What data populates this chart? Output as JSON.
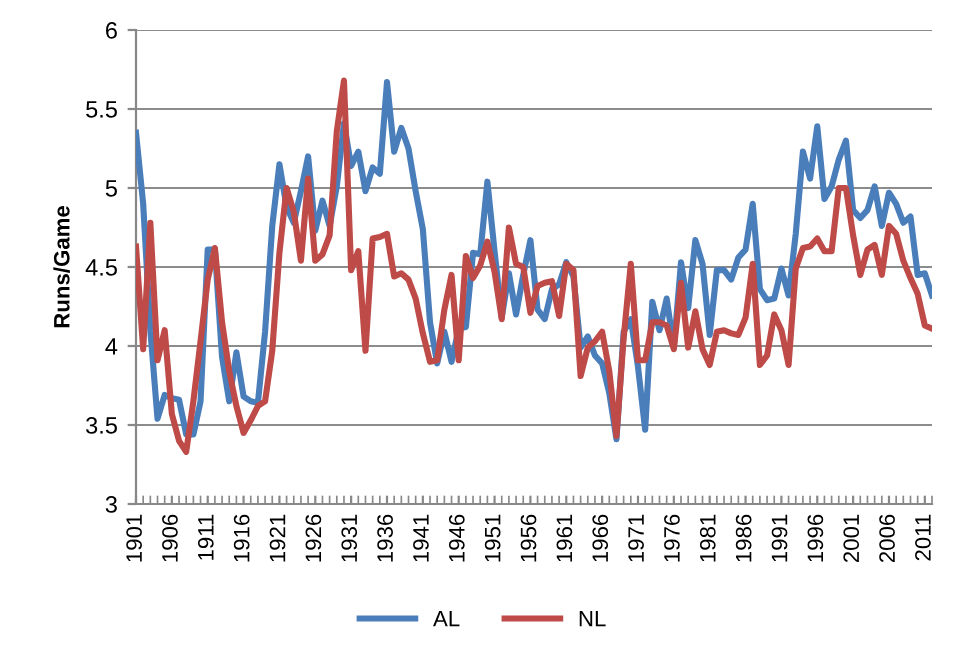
{
  "chart_data": {
    "type": "line",
    "ylabel": "Runs/Game",
    "x": [
      1901,
      1902,
      1903,
      1904,
      1905,
      1906,
      1907,
      1908,
      1909,
      1910,
      1911,
      1912,
      1913,
      1914,
      1915,
      1916,
      1917,
      1918,
      1919,
      1920,
      1921,
      1922,
      1923,
      1924,
      1925,
      1926,
      1927,
      1928,
      1929,
      1930,
      1931,
      1932,
      1933,
      1934,
      1935,
      1936,
      1937,
      1938,
      1939,
      1940,
      1941,
      1942,
      1943,
      1944,
      1945,
      1946,
      1947,
      1948,
      1949,
      1950,
      1951,
      1952,
      1953,
      1954,
      1955,
      1956,
      1957,
      1958,
      1959,
      1960,
      1961,
      1962,
      1963,
      1964,
      1965,
      1966,
      1967,
      1968,
      1969,
      1970,
      1971,
      1972,
      1973,
      1974,
      1975,
      1976,
      1977,
      1978,
      1979,
      1980,
      1981,
      1982,
      1983,
      1984,
      1985,
      1986,
      1987,
      1988,
      1989,
      1990,
      1991,
      1992,
      1993,
      1994,
      1995,
      1996,
      1997,
      1998,
      1999,
      2000,
      2001,
      2002,
      2003,
      2004,
      2005,
      2006,
      2007,
      2008,
      2009,
      2010,
      2011,
      2012
    ],
    "series": [
      {
        "name": "AL",
        "color": "#4a7ebb",
        "values": [
          5.35,
          4.9,
          4.1,
          3.54,
          3.69,
          3.67,
          3.66,
          3.44,
          3.44,
          3.65,
          4.61,
          4.61,
          3.93,
          3.65,
          3.96,
          3.68,
          3.65,
          3.64,
          4.09,
          4.76,
          5.15,
          4.88,
          4.78,
          4.98,
          5.2,
          4.73,
          4.92,
          4.76,
          5.01,
          5.41,
          5.14,
          5.23,
          4.98,
          5.13,
          5.09,
          5.67,
          5.23,
          5.38,
          5.25,
          4.98,
          4.74,
          4.15,
          3.89,
          4.09,
          3.9,
          4.11,
          4.12,
          4.59,
          4.58,
          5.04,
          4.6,
          4.18,
          4.46,
          4.2,
          4.45,
          4.67,
          4.23,
          4.17,
          4.36,
          4.39,
          4.53,
          4.44,
          3.99,
          4.06,
          3.94,
          3.89,
          3.7,
          3.41,
          4.09,
          4.17,
          3.87,
          3.47,
          4.28,
          4.1,
          4.3,
          3.99,
          4.53,
          4.24,
          4.67,
          4.52,
          4.07,
          4.48,
          4.48,
          4.42,
          4.56,
          4.61,
          4.9,
          4.36,
          4.29,
          4.3,
          4.49,
          4.32,
          4.71,
          5.23,
          5.06,
          5.39,
          4.93,
          5.01,
          5.18,
          5.3,
          4.86,
          4.81,
          4.86,
          5.01,
          4.76,
          4.97,
          4.9,
          4.78,
          4.82,
          4.45,
          4.46,
          4.32
        ]
      },
      {
        "name": "NL",
        "color": "#be4b48",
        "values": [
          4.63,
          3.98,
          4.78,
          3.91,
          4.1,
          3.57,
          3.4,
          3.33,
          3.65,
          4.03,
          4.42,
          4.62,
          4.15,
          3.84,
          3.62,
          3.45,
          3.53,
          3.62,
          3.65,
          3.97,
          4.59,
          5.0,
          4.85,
          4.54,
          5.06,
          4.54,
          4.58,
          4.7,
          5.36,
          5.68,
          4.48,
          4.6,
          3.97,
          4.68,
          4.69,
          4.71,
          4.44,
          4.46,
          4.42,
          4.3,
          4.08,
          3.9,
          3.91,
          4.23,
          4.45,
          3.91,
          4.57,
          4.43,
          4.51,
          4.66,
          4.47,
          4.17,
          4.75,
          4.52,
          4.5,
          4.21,
          4.38,
          4.4,
          4.41,
          4.19,
          4.52,
          4.48,
          3.81,
          3.99,
          4.03,
          4.09,
          3.84,
          3.43,
          4.05,
          4.52,
          3.91,
          3.91,
          4.15,
          4.15,
          4.13,
          3.98,
          4.4,
          3.99,
          4.22,
          3.98,
          3.88,
          4.09,
          4.1,
          4.08,
          4.07,
          4.18,
          4.52,
          3.88,
          3.94,
          4.2,
          4.1,
          3.88,
          4.49,
          4.62,
          4.63,
          4.68,
          4.6,
          4.6,
          5.0,
          5.0,
          4.7,
          4.45,
          4.61,
          4.64,
          4.45,
          4.76,
          4.71,
          4.54,
          4.43,
          4.33,
          4.13,
          4.11
        ]
      }
    ],
    "xlim": [
      1901,
      2012
    ],
    "xticks": [
      1901,
      1906,
      1911,
      1916,
      1921,
      1926,
      1931,
      1936,
      1941,
      1946,
      1951,
      1956,
      1961,
      1966,
      1971,
      1976,
      1981,
      1986,
      1991,
      1996,
      2001,
      2006,
      2011
    ],
    "ylim": [
      3,
      6
    ],
    "yticks": [
      3,
      3.5,
      4,
      4.5,
      5,
      5.5,
      6
    ],
    "grid": "y",
    "legend": "bottom",
    "marker": "none",
    "line_style": "solid"
  }
}
